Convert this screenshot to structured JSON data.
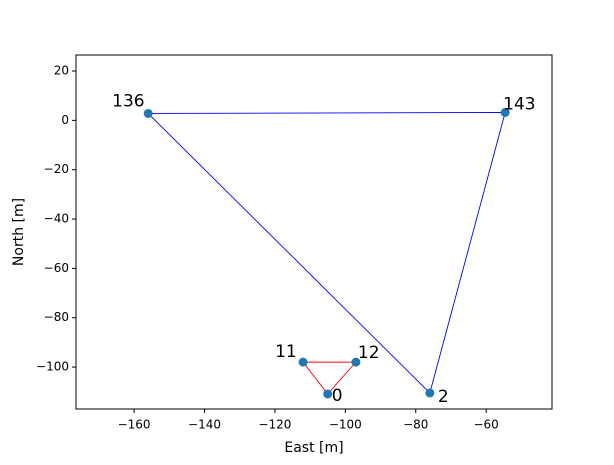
{
  "chart_data": {
    "type": "scatter",
    "xlabel": "East [m]",
    "ylabel": "North [m]",
    "xlim": [
      -176.5,
      -41.3
    ],
    "ylim": [
      -117,
      26.5
    ],
    "xticks": [
      {
        "value": -160,
        "label": "−160"
      },
      {
        "value": -140,
        "label": "−140"
      },
      {
        "value": -120,
        "label": "−120"
      },
      {
        "value": -100,
        "label": "−100"
      },
      {
        "value": -80,
        "label": "−80"
      },
      {
        "value": -60,
        "label": "−60"
      }
    ],
    "yticks": [
      20,
      0,
      {
        "value": -20,
        "label": "−20"
      },
      {
        "value": -40,
        "label": "−40"
      },
      {
        "value": -60,
        "label": "−60"
      },
      {
        "value": -80,
        "label": "−80"
      },
      {
        "value": -100,
        "label": "−100"
      }
    ],
    "marker_color": "#1f77b4",
    "series": [
      {
        "color": "#0000ff",
        "closed": true,
        "x": [
          -156,
          -54.6,
          -76
        ],
        "y": [
          2.8,
          3.2,
          -110.5
        ],
        "labels": [
          "136",
          "143",
          "2"
        ]
      },
      {
        "color": "#ff0000",
        "closed": true,
        "x": [
          -105,
          -112,
          -97
        ],
        "y": [
          -110.9,
          -98,
          -98
        ],
        "labels": [
          "0",
          "11",
          "12"
        ]
      }
    ]
  }
}
